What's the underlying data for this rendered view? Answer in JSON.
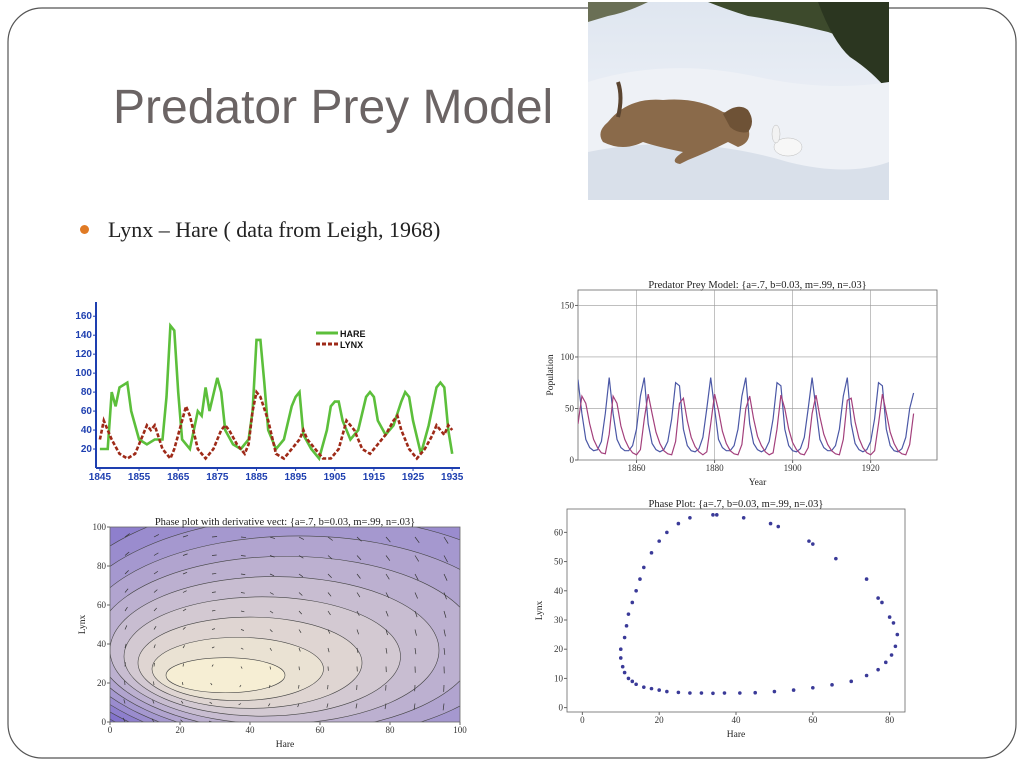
{
  "slide": {
    "title": "Predator Prey Model",
    "bullet": "Lynx – Hare ( data from Leigh, 1968)"
  },
  "chart_data": [
    {
      "type": "line",
      "xlim": [
        1844,
        1937
      ],
      "xticks": [
        1845,
        1855,
        1865,
        1875,
        1885,
        1895,
        1905,
        1915,
        1925,
        1935
      ],
      "ylim": [
        0,
        175
      ],
      "yticks": [
        20,
        40,
        60,
        80,
        100,
        120,
        140,
        160
      ],
      "legend": "upper-right",
      "series": [
        {
          "name": "HARE",
          "color": "#5cbf3b",
          "dash": false,
          "x": [
            1845,
            1847,
            1848,
            1849,
            1850,
            1852,
            1853,
            1855,
            1857,
            1859,
            1861,
            1862,
            1863,
            1864,
            1865,
            1866,
            1868,
            1870,
            1871,
            1872,
            1873,
            1875,
            1876,
            1877,
            1879,
            1881,
            1883,
            1884,
            1885,
            1886,
            1887,
            1888,
            1890,
            1892,
            1894,
            1895,
            1896,
            1897,
            1899,
            1901,
            1903,
            1904,
            1905,
            1906,
            1907,
            1909,
            1911,
            1913,
            1914,
            1915,
            1916,
            1918,
            1920,
            1922,
            1923,
            1924,
            1925,
            1927,
            1929,
            1931,
            1932,
            1933,
            1934,
            1935
          ],
          "values": [
            20,
            20,
            80,
            65,
            85,
            90,
            60,
            30,
            25,
            30,
            30,
            75,
            150,
            145,
            80,
            30,
            20,
            60,
            55,
            85,
            60,
            95,
            80,
            40,
            25,
            20,
            30,
            60,
            135,
            135,
            90,
            40,
            20,
            30,
            65,
            75,
            80,
            35,
            20,
            10,
            40,
            65,
            70,
            70,
            50,
            30,
            40,
            75,
            80,
            75,
            50,
            35,
            45,
            70,
            80,
            75,
            50,
            15,
            45,
            85,
            90,
            85,
            40,
            15
          ]
        },
        {
          "name": "LYNX",
          "color": "#9e2a18",
          "dash": true,
          "x": [
            1845,
            1846,
            1847,
            1848,
            1850,
            1852,
            1854,
            1856,
            1857,
            1858,
            1859,
            1861,
            1863,
            1864,
            1866,
            1867,
            1868,
            1870,
            1872,
            1874,
            1876,
            1877,
            1878,
            1880,
            1882,
            1883,
            1884,
            1885,
            1886,
            1888,
            1890,
            1892,
            1894,
            1896,
            1897,
            1898,
            1900,
            1902,
            1904,
            1906,
            1908,
            1910,
            1912,
            1914,
            1916,
            1918,
            1920,
            1921,
            1922,
            1924,
            1926,
            1928,
            1930,
            1931,
            1932,
            1933,
            1934,
            1935
          ],
          "values": [
            30,
            50,
            40,
            30,
            15,
            10,
            15,
            35,
            45,
            40,
            45,
            20,
            10,
            20,
            50,
            65,
            55,
            20,
            10,
            20,
            40,
            45,
            40,
            25,
            15,
            25,
            60,
            80,
            75,
            50,
            15,
            10,
            20,
            30,
            40,
            30,
            20,
            10,
            10,
            20,
            50,
            40,
            20,
            15,
            25,
            35,
            50,
            55,
            40,
            20,
            10,
            20,
            35,
            45,
            40,
            35,
            45,
            40
          ]
        }
      ]
    },
    {
      "type": "line",
      "title": "Predator Prey Model: {a=.7, b=0.03, m=.99, n=.03}",
      "x_label": "Year",
      "y_label": "Population",
      "grid": true,
      "xlim": [
        1845,
        1937
      ],
      "xticks": [
        1860,
        1880,
        1900,
        1920
      ],
      "ylim": [
        0,
        165
      ],
      "yticks": [
        0,
        50,
        100,
        150
      ],
      "x": [
        1845,
        1846,
        1847,
        1848,
        1849,
        1850,
        1851,
        1852,
        1853,
        1854,
        1855,
        1856,
        1857,
        1858,
        1859,
        1860,
        1861,
        1862,
        1863,
        1864,
        1865,
        1866,
        1867,
        1868,
        1869,
        1870,
        1871,
        1872,
        1873,
        1874,
        1875,
        1876,
        1877,
        1878,
        1879,
        1880,
        1881,
        1882,
        1883,
        1884,
        1885,
        1886,
        1887,
        1888,
        1889,
        1890,
        1891,
        1892,
        1893,
        1894,
        1895,
        1896,
        1897,
        1898,
        1899,
        1900,
        1901,
        1902,
        1903,
        1904,
        1905,
        1906,
        1907,
        1908,
        1909,
        1910,
        1911,
        1912,
        1913,
        1914,
        1915,
        1916,
        1917,
        1918,
        1919,
        1920,
        1921,
        1922,
        1923,
        1924,
        1925,
        1926,
        1927,
        1928,
        1929,
        1930,
        1931
      ],
      "series": [
        {
          "color": "#4b58a6",
          "values": [
            78,
            45,
            20,
            12,
            9,
            10,
            18,
            45,
            80,
            45,
            20,
            12,
            9,
            9,
            14,
            30,
            62,
            80,
            35,
            16,
            10,
            8,
            10,
            18,
            40,
            75,
            72,
            30,
            14,
            9,
            8,
            11,
            22,
            50,
            80,
            50,
            20,
            12,
            9,
            9,
            14,
            30,
            62,
            80,
            35,
            16,
            10,
            8,
            10,
            18,
            40,
            75,
            72,
            30,
            14,
            9,
            8,
            11,
            22,
            50,
            80,
            50,
            20,
            12,
            9,
            9,
            14,
            30,
            62,
            80,
            35,
            16,
            10,
            8,
            10,
            18,
            40,
            75,
            72,
            30,
            14,
            9,
            8,
            11,
            22,
            50,
            65
          ]
        },
        {
          "color": "#a3407c",
          "values": [
            35,
            62,
            55,
            35,
            20,
            12,
            7,
            6,
            25,
            62,
            55,
            33,
            20,
            12,
            7,
            5,
            10,
            40,
            64,
            45,
            27,
            16,
            9,
            6,
            5,
            18,
            55,
            60,
            38,
            22,
            13,
            8,
            5,
            8,
            35,
            64,
            48,
            28,
            16,
            9,
            6,
            5,
            15,
            50,
            62,
            40,
            23,
            14,
            8,
            5,
            7,
            30,
            63,
            50,
            30,
            17,
            10,
            6,
            5,
            12,
            45,
            63,
            42,
            25,
            15,
            9,
            6,
            5,
            20,
            58,
            60,
            37,
            21,
            12,
            7,
            5,
            9,
            35,
            64,
            46,
            27,
            16,
            9,
            6,
            5,
            15,
            45
          ]
        }
      ]
    },
    {
      "type": "contour",
      "title": "Phase plot with derivative vect: {a=.7, b=0.03, m=.99, n=.03}",
      "x_label": "Hare",
      "y_label": "Lynx",
      "xlim": [
        0,
        100
      ],
      "xticks": [
        0,
        20,
        40,
        60,
        80,
        100
      ],
      "ylim": [
        0,
        100
      ],
      "yticks": [
        0,
        20,
        40,
        60,
        80,
        100
      ]
    },
    {
      "type": "scatter",
      "title": "Phase Plot: {a=.7, b=0.03, m=.99, n=.03}",
      "x_label": "Hare",
      "y_label": "Lynx",
      "color": "#3a3a98",
      "xlim": [
        -4,
        84
      ],
      "xticks": [
        0,
        20,
        40,
        60,
        80
      ],
      "ylim": [
        -1.5,
        68
      ],
      "yticks": [
        0,
        10,
        20,
        30,
        40,
        50,
        60
      ],
      "x": [
        10,
        10,
        10.5,
        11,
        12,
        13,
        14,
        16,
        18,
        20,
        22,
        25,
        28,
        31,
        34,
        37,
        41,
        45,
        50,
        55,
        60,
        65,
        70,
        74,
        77,
        79,
        80.5,
        81.5,
        82,
        81,
        80,
        78,
        77,
        74,
        66,
        60,
        59,
        51,
        49,
        42,
        35,
        34,
        28,
        25,
        22,
        20,
        18,
        16,
        15,
        14,
        13,
        12,
        11.5,
        11
      ],
      "values": [
        20,
        17,
        14,
        12,
        10,
        9,
        8,
        7,
        6.5,
        6,
        5.5,
        5.2,
        5,
        5,
        4.9,
        5,
        5,
        5.1,
        5.5,
        6,
        6.8,
        7.8,
        9,
        11,
        13,
        15.5,
        18,
        21,
        25,
        29,
        31,
        36,
        37.5,
        44,
        51,
        56,
        57,
        62,
        63,
        65,
        66,
        66,
        65,
        63,
        60,
        57,
        53,
        48,
        44,
        40,
        36,
        32,
        28,
        24
      ]
    }
  ]
}
